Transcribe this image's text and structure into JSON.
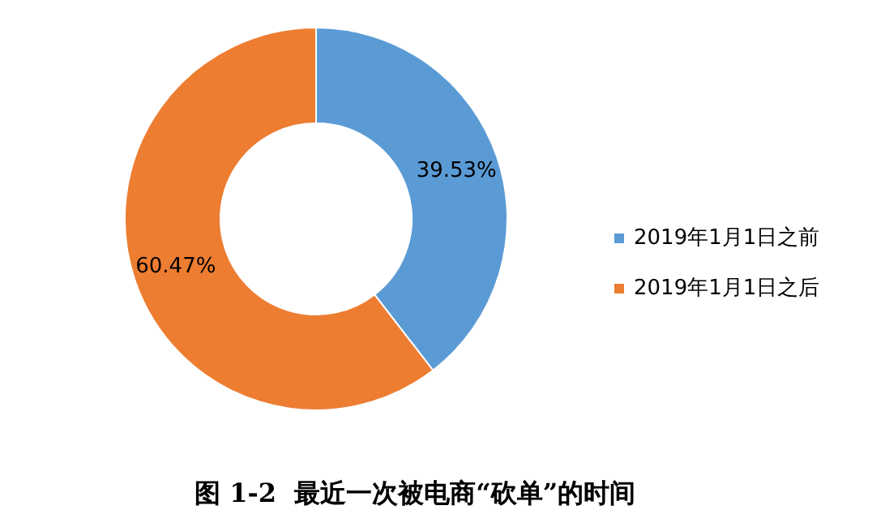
{
  "chart_data": {
    "type": "donut",
    "title": "图 1-2  最近一次被电商“砍单”的时间",
    "categories": [
      "2019年1月1日之前",
      "2019年1月1日之后"
    ],
    "values": [
      39.53,
      60.47
    ],
    "colors": [
      "#5b9bd5",
      "#ed7d31"
    ],
    "value_labels": [
      "39.53%",
      "60.47%"
    ],
    "legend": "right"
  }
}
